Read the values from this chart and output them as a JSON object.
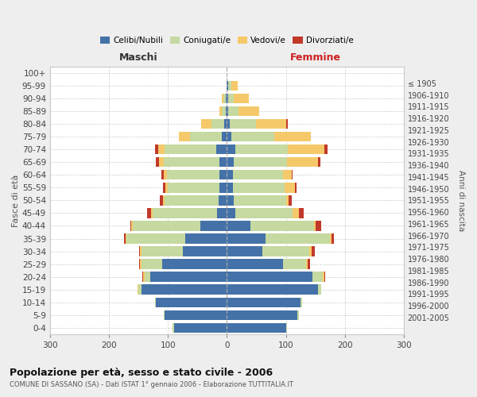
{
  "age_groups": [
    "0-4",
    "5-9",
    "10-14",
    "15-19",
    "20-24",
    "25-29",
    "30-34",
    "35-39",
    "40-44",
    "45-49",
    "50-54",
    "55-59",
    "60-64",
    "65-69",
    "70-74",
    "75-79",
    "80-84",
    "85-89",
    "90-94",
    "95-99",
    "100+"
  ],
  "birth_years": [
    "2001-2005",
    "1996-2000",
    "1991-1995",
    "1986-1990",
    "1981-1985",
    "1976-1980",
    "1971-1975",
    "1966-1970",
    "1961-1965",
    "1956-1960",
    "1951-1955",
    "1946-1950",
    "1941-1945",
    "1936-1940",
    "1931-1935",
    "1926-1930",
    "1921-1925",
    "1916-1920",
    "1911-1915",
    "1906-1910",
    "≤ 1905"
  ],
  "males_celibi": [
    90,
    105,
    120,
    145,
    130,
    110,
    75,
    70,
    45,
    16,
    14,
    12,
    12,
    12,
    18,
    8,
    4,
    2,
    2,
    0,
    0
  ],
  "males_coniugati": [
    2,
    2,
    2,
    5,
    10,
    35,
    70,
    100,
    115,
    110,
    92,
    88,
    90,
    95,
    88,
    55,
    22,
    6,
    4,
    0,
    0
  ],
  "males_vedovi": [
    0,
    0,
    0,
    2,
    2,
    2,
    2,
    2,
    2,
    2,
    2,
    4,
    5,
    8,
    10,
    18,
    18,
    5,
    2,
    0,
    0
  ],
  "males_divorziati": [
    0,
    0,
    0,
    0,
    2,
    2,
    2,
    2,
    2,
    8,
    6,
    5,
    4,
    5,
    6,
    0,
    0,
    0,
    0,
    0,
    0
  ],
  "females_nubili": [
    100,
    120,
    125,
    155,
    145,
    95,
    60,
    65,
    40,
    14,
    12,
    10,
    10,
    12,
    14,
    8,
    5,
    2,
    2,
    2,
    0
  ],
  "females_coniugate": [
    2,
    2,
    2,
    5,
    18,
    40,
    80,
    110,
    108,
    98,
    88,
    88,
    85,
    90,
    90,
    72,
    45,
    18,
    10,
    5,
    0
  ],
  "females_vedove": [
    0,
    0,
    0,
    0,
    2,
    2,
    4,
    2,
    2,
    10,
    5,
    18,
    15,
    52,
    62,
    62,
    50,
    35,
    25,
    12,
    0
  ],
  "females_divorziate": [
    0,
    0,
    0,
    0,
    2,
    4,
    5,
    5,
    10,
    8,
    5,
    2,
    2,
    5,
    5,
    0,
    4,
    0,
    0,
    0,
    0
  ],
  "colors_celibi": "#4472a8",
  "colors_coniugati": "#c5d9a0",
  "colors_vedovi": "#f5c96a",
  "colors_divorziati": "#c0392b",
  "legend_labels": [
    "Celibi/Nubili",
    "Coniugati/e",
    "Vedovi/e",
    "Divorziati/e"
  ],
  "title": "Popolazione per età, sesso e stato civile - 2006",
  "subtitle": "COMUNE DI SASSANO (SA) - Dati ISTAT 1° gennaio 2006 - Elaborazione TUTTITALIA.IT",
  "header_maschi": "Maschi",
  "header_femmine": "Femmine",
  "ylabel_left": "Fasce di età",
  "ylabel_right": "Anni di nascita",
  "xlim": 300,
  "bg_color": "#eeeeee",
  "plot_bg_color": "#ffffff"
}
